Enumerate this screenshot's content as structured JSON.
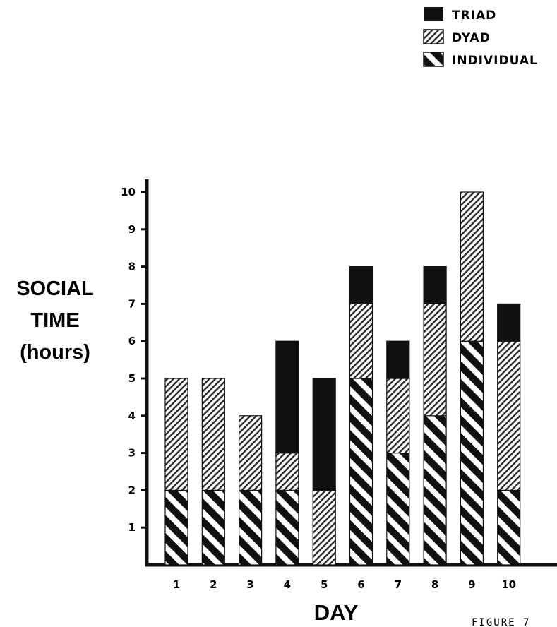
{
  "chart_data": {
    "type": "bar",
    "stacked": true,
    "categories": [
      "1",
      "2",
      "3",
      "4",
      "5",
      "6",
      "7",
      "8",
      "9",
      "10"
    ],
    "series": [
      {
        "name": "INDIVIDUAL",
        "values": [
          2,
          2,
          2,
          2,
          0,
          5,
          3,
          4,
          6,
          2
        ]
      },
      {
        "name": "DYAD",
        "values": [
          3,
          3,
          2,
          1,
          2,
          2,
          2,
          3,
          4,
          4
        ]
      },
      {
        "name": "TRIAD",
        "values": [
          0,
          0,
          0,
          3,
          3,
          1,
          1,
          1,
          0,
          1
        ]
      }
    ],
    "legend_order": [
      "TRIAD",
      "DYAD",
      "INDIVIDUAL"
    ],
    "xlabel": "DAY",
    "ylabel_lines": [
      "SOCIAL",
      "TIME",
      "(hours)"
    ],
    "yticks": [
      1,
      2,
      3,
      4,
      5,
      6,
      7,
      8,
      9,
      10
    ],
    "ylim": [
      0,
      10.5
    ],
    "legend_position": "top-right",
    "grid": false,
    "colors": {
      "TRIAD": "#111111",
      "DYAD": "#555555",
      "INDIVIDUAL": "#111111"
    }
  },
  "caption_fragment": "FIGURE 7"
}
